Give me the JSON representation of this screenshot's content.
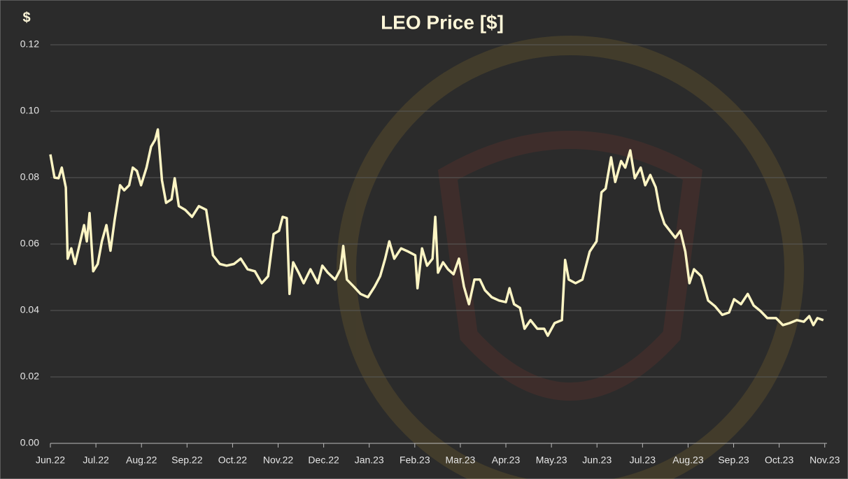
{
  "chart_data": {
    "type": "line",
    "title": "LEO Price [$]",
    "y_label": "$",
    "xlim": [
      0,
      17.05
    ],
    "xticks": [
      {
        "value": 0,
        "label": "Jun.22"
      },
      {
        "value": 1,
        "label": "Jul.22"
      },
      {
        "value": 2,
        "label": "Aug.22"
      },
      {
        "value": 3,
        "label": "Sep.22"
      },
      {
        "value": 4,
        "label": "Oct.22"
      },
      {
        "value": 5,
        "label": "Nov.22"
      },
      {
        "value": 6,
        "label": "Dec.22"
      },
      {
        "value": 7,
        "label": "Jan.23"
      },
      {
        "value": 8,
        "label": "Feb.23"
      },
      {
        "value": 9,
        "label": "Mar.23"
      },
      {
        "value": 10,
        "label": "Apr.23"
      },
      {
        "value": 11,
        "label": "May.23"
      },
      {
        "value": 12,
        "label": "Jun.23"
      },
      {
        "value": 13,
        "label": "Jul.23"
      },
      {
        "value": 14,
        "label": "Aug.23"
      },
      {
        "value": 15,
        "label": "Sep.23"
      },
      {
        "value": 16,
        "label": "Oct.23"
      },
      {
        "value": 17,
        "label": "Nov.23"
      }
    ],
    "ylim": [
      0,
      0.12
    ],
    "yticks": [
      {
        "value": 0,
        "label": "0.00"
      },
      {
        "value": 0.02,
        "label": "0.02"
      },
      {
        "value": 0.04,
        "label": "0.04"
      },
      {
        "value": 0.06,
        "label": "0.06"
      },
      {
        "value": 0.08,
        "label": "0.08"
      },
      {
        "value": 0.1,
        "label": "0.10"
      },
      {
        "value": 0.12,
        "label": "0.12"
      }
    ],
    "grid": true,
    "x": [
      0.0,
      0.09,
      0.18,
      0.25,
      0.34,
      0.38,
      0.46,
      0.54,
      0.61,
      0.74,
      0.8,
      0.86,
      0.94,
      1.04,
      1.13,
      1.23,
      1.32,
      1.41,
      1.53,
      1.62,
      1.73,
      1.81,
      1.9,
      1.99,
      2.11,
      2.21,
      2.3,
      2.36,
      2.45,
      2.54,
      2.66,
      2.73,
      2.82,
      2.96,
      3.11,
      3.26,
      3.42,
      3.49,
      3.57,
      3.72,
      3.87,
      4.03,
      4.18,
      4.33,
      4.49,
      4.64,
      4.78,
      4.9,
      5.02,
      5.1,
      5.19,
      5.25,
      5.33,
      5.45,
      5.56,
      5.71,
      5.87,
      5.97,
      6.09,
      6.25,
      6.37,
      6.43,
      6.51,
      6.66,
      6.81,
      6.97,
      7.12,
      7.24,
      7.35,
      7.44,
      7.55,
      7.7,
      7.86,
      8.01,
      8.06,
      8.16,
      8.27,
      8.39,
      8.45,
      8.51,
      8.62,
      8.73,
      8.85,
      8.97,
      9.08,
      9.19,
      9.31,
      9.43,
      9.54,
      9.69,
      9.85,
      10.0,
      10.08,
      10.18,
      10.31,
      10.41,
      10.54,
      10.69,
      10.84,
      10.92,
      11.07,
      11.23,
      11.3,
      11.38,
      11.53,
      11.68,
      11.84,
      11.99,
      12.1,
      12.19,
      12.31,
      12.4,
      12.53,
      12.62,
      12.73,
      12.83,
      12.96,
      13.06,
      13.17,
      13.29,
      13.38,
      13.48,
      13.6,
      13.72,
      13.83,
      13.94,
      14.03,
      14.13,
      14.29,
      14.44,
      14.59,
      14.75,
      14.9,
      15.01,
      15.16,
      15.31,
      15.44,
      15.59,
      15.74,
      15.93,
      16.08,
      16.23,
      16.39,
      16.54,
      16.66,
      16.75,
      16.84,
      16.97
    ],
    "series": [
      {
        "name": "LEO Price",
        "color": "#fdf5c4",
        "values": [
          0.087,
          0.08,
          0.0798,
          0.083,
          0.077,
          0.0556,
          0.0587,
          0.054,
          0.058,
          0.0657,
          0.0608,
          0.0693,
          0.0518,
          0.054,
          0.0608,
          0.0657,
          0.058,
          0.0672,
          0.0777,
          0.0762,
          0.0777,
          0.083,
          0.082,
          0.0777,
          0.083,
          0.0893,
          0.0914,
          0.0945,
          0.0792,
          0.0724,
          0.0735,
          0.0798,
          0.0714,
          0.0703,
          0.0682,
          0.0714,
          0.0703,
          0.064,
          0.0566,
          0.054,
          0.0535,
          0.054,
          0.0556,
          0.0524,
          0.0518,
          0.0482,
          0.0503,
          0.063,
          0.064,
          0.0682,
          0.0678,
          0.045,
          0.0545,
          0.0514,
          0.0482,
          0.0524,
          0.0482,
          0.0535,
          0.0514,
          0.0493,
          0.0524,
          0.0594,
          0.0493,
          0.0472,
          0.045,
          0.044,
          0.0472,
          0.0503,
          0.0556,
          0.0608,
          0.0556,
          0.0587,
          0.0577,
          0.0566,
          0.0467,
          0.0587,
          0.0535,
          0.0556,
          0.0682,
          0.0514,
          0.0545,
          0.0524,
          0.0509,
          0.0556,
          0.0472,
          0.0419,
          0.0493,
          0.0493,
          0.0461,
          0.044,
          0.043,
          0.0425,
          0.0467,
          0.0419,
          0.0408,
          0.0345,
          0.0371,
          0.0345,
          0.0345,
          0.0324,
          0.0362,
          0.0371,
          0.0552,
          0.0493,
          0.0482,
          0.0493,
          0.0577,
          0.0608,
          0.0756,
          0.0767,
          0.0861,
          0.0787,
          0.085,
          0.083,
          0.0882,
          0.0798,
          0.083,
          0.0777,
          0.0808,
          0.0771,
          0.0703,
          0.0661,
          0.064,
          0.0619,
          0.064,
          0.0577,
          0.0482,
          0.0524,
          0.0503,
          0.043,
          0.0413,
          0.0387,
          0.0394,
          0.0434,
          0.0419,
          0.045,
          0.0415,
          0.0398,
          0.0377,
          0.0377,
          0.0356,
          0.0362,
          0.0371,
          0.0366,
          0.0383,
          0.0356,
          0.0377,
          0.0371
        ]
      }
    ]
  }
}
